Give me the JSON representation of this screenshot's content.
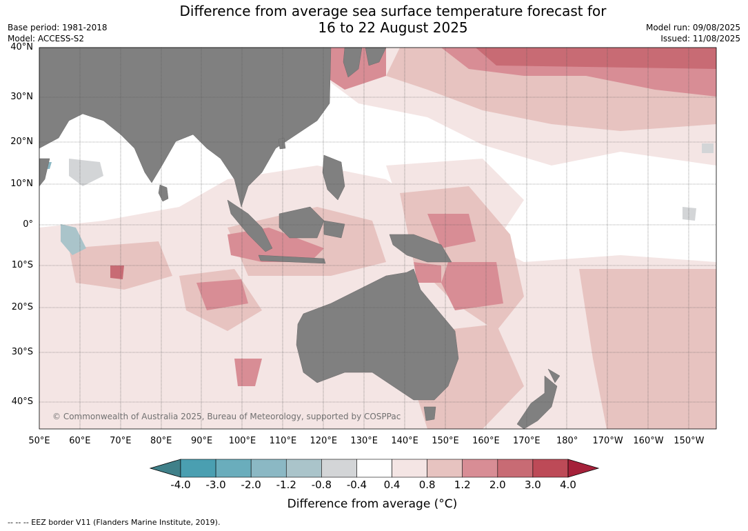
{
  "title_line1": "Difference from average sea surface temperature forecast for",
  "title_line2": "16 to 22 August 2025",
  "meta_left": [
    "Base period: 1981-2018",
    "Model: ACCESS-S2"
  ],
  "meta_right": [
    "Model run: 09/08/2025",
    "Issued: 11/08/2025"
  ],
  "lat_labels": [
    "40°N",
    "30°N",
    "20°N",
    "10°N",
    "0°",
    "10°S",
    "20°S",
    "30°S",
    "40°S"
  ],
  "lon_labels": [
    "50°E",
    "60°E",
    "70°E",
    "80°E",
    "90°E",
    "100°E",
    "110°E",
    "120°E",
    "130°E",
    "140°E",
    "150°E",
    "160°E",
    "170°E",
    "180°",
    "170°W",
    "160°W",
    "150°W"
  ],
  "copyright": "© Commonwealth of Australia 2025, Bureau of Meteorology, supported by COSPPac",
  "colorbar": {
    "ticks": [
      "-4.0",
      "-3.0",
      "-2.0",
      "-1.2",
      "-0.8",
      "-0.4",
      "0.4",
      "0.8",
      "1.2",
      "2.0",
      "3.0",
      "4.0"
    ],
    "colors": [
      "#3f8089",
      "#4a9fb1",
      "#6aadbc",
      "#8bb8c4",
      "#aac4ca",
      "#d3d5d7",
      "#ffffff",
      "#f4e5e4",
      "#e7c3c0",
      "#d88d95",
      "#c86b74",
      "#bd4a57",
      "#a5213a"
    ],
    "label": "Difference from average (°C)"
  },
  "footer": "--  --  -- EEZ border V11 (Flanders Marine Institute, 2019).",
  "colors": {
    "land": "#808080",
    "ocean_bg": "#ffffff",
    "grid": "#555555"
  }
}
